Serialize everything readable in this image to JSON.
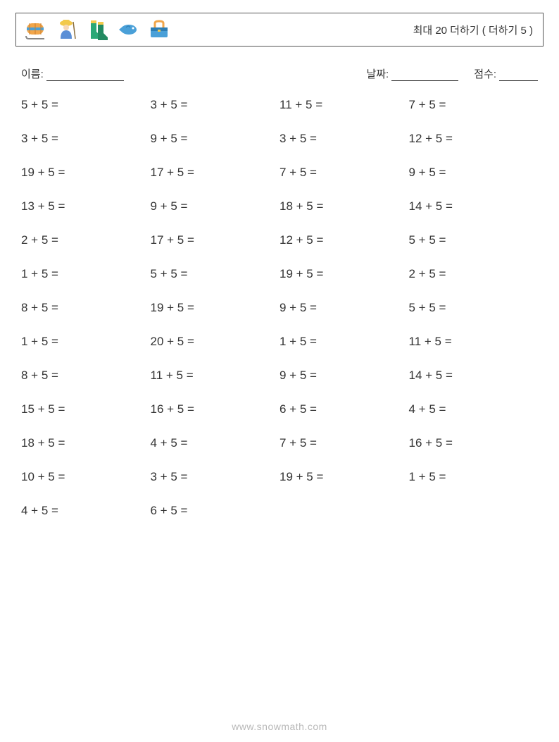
{
  "header": {
    "title": "최대 20 더하기 ( 더하기 5 )",
    "icons": [
      "sled-icon",
      "fisherman-icon",
      "boots-icon",
      "fish-icon",
      "tackle-box-icon"
    ],
    "colors": {
      "sled_body": "#f2a64a",
      "sled_stripe": "#4aa0d8",
      "fisherman_hat": "#f2c94c",
      "fisherman_coat": "#5b8fd6",
      "boots": "#2aa876",
      "fish": "#4aa0d8",
      "box": "#4aa0d8",
      "box_handle": "#f2a64a"
    }
  },
  "meta": {
    "name_label": "이름:",
    "date_label": "날짜:",
    "score_label": "점수:"
  },
  "grid": {
    "columns": 4,
    "rows": [
      [
        "5 + 5 =",
        "3 + 5 =",
        "11 + 5 =",
        "7 + 5 ="
      ],
      [
        "3 + 5 =",
        "9 + 5 =",
        "3 + 5 =",
        "12 + 5 ="
      ],
      [
        "19 + 5 =",
        "17 + 5 =",
        "7 + 5 =",
        "9 + 5 ="
      ],
      [
        "13 + 5 =",
        "9 + 5 =",
        "18 + 5 =",
        "14 + 5 ="
      ],
      [
        "2 + 5 =",
        "17 + 5 =",
        "12 + 5 =",
        "5 + 5 ="
      ],
      [
        "1 + 5 =",
        "5 + 5 =",
        "19 + 5 =",
        "2 + 5 ="
      ],
      [
        "8 + 5 =",
        "19 + 5 =",
        "9 + 5 =",
        "5 + 5 ="
      ],
      [
        "1 + 5 =",
        "20 + 5 =",
        "1 + 5 =",
        "11 + 5 ="
      ],
      [
        "8 + 5 =",
        "11 + 5 =",
        "9 + 5 =",
        "14 + 5 ="
      ],
      [
        "15 + 5 =",
        "16 + 5 =",
        "6 + 5 =",
        "4 + 5 ="
      ],
      [
        "18 + 5 =",
        "4 + 5 =",
        "7 + 5 =",
        "16 + 5 ="
      ],
      [
        "10 + 5 =",
        "3 + 5 =",
        "19 + 5 =",
        "1 + 5 ="
      ],
      [
        "4 + 5 =",
        "6 + 5 =",
        "",
        ""
      ]
    ],
    "text_color": "#333333",
    "font_size": 17
  },
  "footer": {
    "text": "www.snowmath.com",
    "color": "#b8b8b8"
  }
}
